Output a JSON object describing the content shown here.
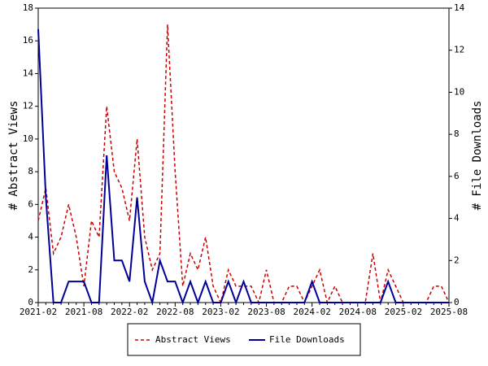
{
  "chart_data": {
    "type": "line",
    "ylabel": "# Abstract Views",
    "y2label": "# File Downloads",
    "categories": [
      "2021-02",
      null,
      null,
      null,
      null,
      null,
      "2021-08",
      null,
      null,
      null,
      null,
      null,
      "2022-02",
      null,
      null,
      null,
      null,
      null,
      "2022-08",
      null,
      null,
      null,
      null,
      null,
      "2023-02",
      null,
      null,
      null,
      null,
      null,
      "2023-08",
      null,
      null,
      null,
      null,
      null,
      "2024-02",
      null,
      null,
      null,
      null,
      null,
      "2024-08",
      null,
      null,
      null,
      null,
      null,
      "2025-02",
      null,
      null,
      null,
      null,
      null,
      "2025-08"
    ],
    "ylim": [
      0,
      18
    ],
    "yticks": [
      0,
      2,
      4,
      6,
      8,
      10,
      12,
      14,
      16,
      18
    ],
    "y2lim": [
      0,
      14
    ],
    "y2ticks": [
      0,
      2,
      4,
      6,
      8,
      10,
      12,
      14
    ],
    "series": [
      {
        "name": "Abstract Views",
        "color": "#cc0000",
        "dashed": true,
        "values": [
          5,
          7,
          3,
          4,
          6,
          4,
          1,
          5,
          4,
          12,
          8,
          7,
          5,
          10,
          4,
          2,
          3,
          17,
          8,
          1,
          3,
          2,
          4,
          1,
          0,
          2,
          1,
          1,
          1,
          0,
          2,
          0,
          0,
          1,
          1,
          0,
          1,
          2,
          0,
          1,
          0,
          0,
          0,
          0,
          3,
          0,
          2,
          1,
          0,
          0,
          0,
          0,
          1,
          1,
          0
        ]
      },
      {
        "name": "File Downloads",
        "color": "#000099",
        "axis": "y2",
        "values": [
          13,
          5,
          0,
          0,
          1,
          1,
          1,
          0,
          0,
          7,
          2,
          2,
          1,
          5,
          1,
          0,
          2,
          1,
          1,
          0,
          1,
          0,
          1,
          0,
          0,
          1,
          0,
          1,
          0,
          0,
          0,
          0,
          0,
          0,
          0,
          0,
          1,
          0,
          0,
          0,
          0,
          0,
          0,
          0,
          0,
          0,
          1,
          0,
          0,
          0,
          0,
          0,
          0,
          0,
          0
        ]
      }
    ],
    "legend": "bottom"
  }
}
